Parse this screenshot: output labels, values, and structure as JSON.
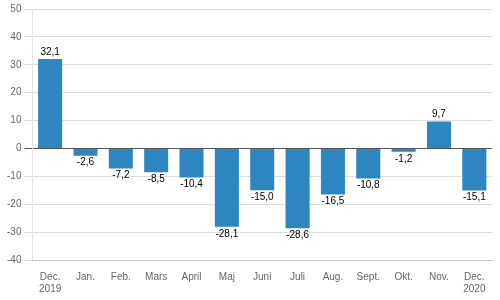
{
  "chart_data": {
    "type": "bar",
    "categories": [
      "Dec.\n2019",
      "Jan.",
      "Feb.",
      "Mars",
      "April",
      "Maj",
      "Juni",
      "Juli",
      "Aug.",
      "Sept.",
      "Okt.",
      "Nov.",
      "Dec.\n2020"
    ],
    "values": [
      32.1,
      -2.6,
      -7.2,
      -8.5,
      -10.4,
      -28.1,
      -15.0,
      -28.6,
      -16.5,
      -10.8,
      -1.2,
      9.7,
      -15.1
    ],
    "value_labels": [
      "32,1",
      "-2,6",
      "-7,2",
      "-8,5",
      "-10,4",
      "-28,1",
      "-15,0",
      "-28,6",
      "-16,5",
      "-10,8",
      "-1,2",
      "9,7",
      "-15,1"
    ],
    "data_labels": true,
    "color": "#2E86C1",
    "ylim": [
      -40,
      50
    ],
    "yticks": [
      -40,
      -30,
      -20,
      -10,
      0,
      10,
      20,
      30,
      40,
      50
    ],
    "grid": true
  }
}
